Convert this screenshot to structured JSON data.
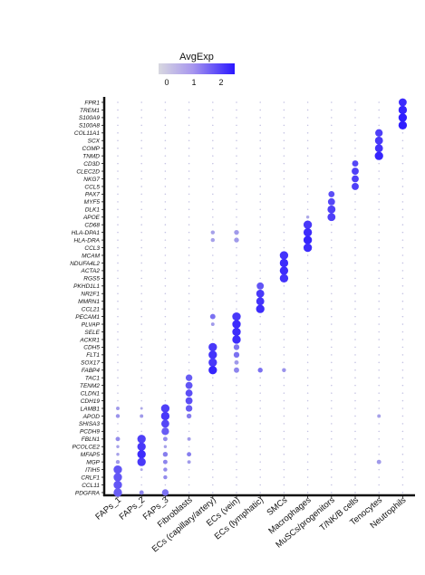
{
  "chart_data": {
    "type": "dotplot",
    "legend": {
      "title": "AvgExp",
      "ticks": [
        "0",
        "1",
        "2"
      ],
      "color_low": "#d8d8e0",
      "color_high": "#2a17ff",
      "range": [
        -0.3,
        2.5
      ]
    },
    "genes": [
      "FPR1",
      "TREM1",
      "S100A9",
      "S100A8",
      "COL11A1",
      "SCX",
      "COMP",
      "TNMD",
      "CD3D",
      "CLEC2D",
      "NKG7",
      "CCL5",
      "PAX7",
      "MYF5",
      "DLK1",
      "APOE",
      "CD68",
      "HLA-DPA1",
      "HLA-DRA",
      "CCL3",
      "MCAM",
      "NDUFA4L2",
      "ACTA2",
      "RGS5",
      "PKHD1L1",
      "NR2F1",
      "MMRN1",
      "CCL21",
      "PECAM1",
      "PLVAP",
      "SELE",
      "ACKR1",
      "CDH5",
      "FLT1",
      "SOX17",
      "FABP4",
      "TAC1",
      "TENM2",
      "CLDN1",
      "CDH19",
      "LAMB1",
      "APOD",
      "SHISA3",
      "PCDH9",
      "FBLN1",
      "PCOLCE2",
      "MFAP5",
      "MGP",
      "ITIH5",
      "CRLF1",
      "CCL11",
      "PDGFRA"
    ],
    "cell_types": [
      "FAPs_1",
      "FAPs_2",
      "FAPs_3",
      "Fibroblasts",
      "ECs (capillary/artery)",
      "ECs (vein)",
      "ECs (lymphatic)",
      "SMCs",
      "Macrophages",
      "MuSCs/progenitors",
      "T/NK/B cells",
      "Tenocytes",
      "Neutrophils"
    ],
    "highlights": [
      {
        "cell": "FAPs_1",
        "genes": {
          "FBLN1": [
            0.8,
            1.0
          ],
          "MGP": [
            0.6,
            0.9
          ],
          "ITIH5": [
            1.6,
            1.9
          ],
          "CRLF1": [
            1.6,
            1.9
          ],
          "CCL11": [
            1.6,
            1.9
          ],
          "PDGFRA": [
            1.5,
            1.9
          ],
          "LAMB1": [
            0.6,
            0.8
          ],
          "APOD": [
            0.7,
            0.9
          ],
          "PCOLCE2": [
            0.5,
            0.7
          ],
          "MFAP5": [
            0.5,
            0.7
          ]
        }
      },
      {
        "cell": "FAPs_2",
        "genes": {
          "FBLN1": [
            1.9,
            1.9
          ],
          "PCOLCE2": [
            2.0,
            1.9
          ],
          "MFAP5": [
            2.2,
            1.9
          ],
          "MGP": [
            2.0,
            1.9
          ],
          "APOD": [
            0.6,
            0.8
          ],
          "PDGFRA": [
            0.9,
            1.0
          ],
          "LAMB1": [
            0.4,
            0.6
          ],
          "ITIH5": [
            0.4,
            0.6
          ]
        }
      },
      {
        "cell": "FAPs_3",
        "genes": {
          "LAMB1": [
            1.9,
            1.9
          ],
          "APOD": [
            2.0,
            1.9
          ],
          "SHISA3": [
            1.8,
            1.8
          ],
          "PCDH9": [
            1.5,
            1.7
          ],
          "FBLN1": [
            0.8,
            1.0
          ],
          "MFAP5": [
            1.0,
            1.1
          ],
          "MGP": [
            0.9,
            1.0
          ],
          "ITIH5": [
            0.8,
            0.9
          ],
          "CRLF1": [
            0.8,
            0.9
          ],
          "PDGFRA": [
            1.2,
            1.5
          ],
          "PCOLCE2": [
            0.5,
            0.7
          ]
        }
      },
      {
        "cell": "Fibroblasts",
        "genes": {
          "TAC1": [
            1.5,
            1.5
          ],
          "TENM2": [
            1.6,
            1.6
          ],
          "CLDN1": [
            1.7,
            1.6
          ],
          "CDH19": [
            1.7,
            1.6
          ],
          "LAMB1": [
            1.5,
            1.5
          ],
          "APOD": [
            1.0,
            1.1
          ],
          "MFAP5": [
            1.0,
            1.0
          ],
          "FBLN1": [
            0.6,
            0.8
          ],
          "MGP": [
            0.6,
            0.8
          ]
        }
      },
      {
        "cell": "ECs (capillary/artery)",
        "genes": {
          "CDH5": [
            2.0,
            1.9
          ],
          "FLT1": [
            2.1,
            1.9
          ],
          "SOX17": [
            2.0,
            1.9
          ],
          "FABP4": [
            2.3,
            1.9
          ],
          "PECAM1": [
            1.2,
            1.2
          ],
          "HLA-DPA1": [
            0.5,
            0.9
          ],
          "HLA-DRA": [
            0.5,
            0.9
          ],
          "PLVAP": [
            0.6,
            0.8
          ]
        }
      },
      {
        "cell": "ECs (vein)",
        "genes": {
          "PLVAP": [
            2.2,
            1.9
          ],
          "SELE": [
            2.2,
            1.9
          ],
          "ACKR1": [
            2.2,
            1.9
          ],
          "PECAM1": [
            2.0,
            1.9
          ],
          "CDH5": [
            1.1,
            1.3
          ],
          "FLT1": [
            1.2,
            1.3
          ],
          "SOX17": [
            0.6,
            1.0
          ],
          "FABP4": [
            0.9,
            1.2
          ],
          "HLA-DPA1": [
            0.6,
            1.1
          ],
          "HLA-DRA": [
            0.6,
            1.1
          ]
        }
      },
      {
        "cell": "ECs (lymphatic)",
        "genes": {
          "NR2F1": [
            2.0,
            1.8
          ],
          "MMRN1": [
            2.1,
            1.8
          ],
          "CCL21": [
            2.2,
            1.9
          ],
          "PKHD1L1": [
            1.6,
            1.6
          ],
          "FABP4": [
            1.2,
            1.1
          ]
        }
      },
      {
        "cell": "SMCs",
        "genes": {
          "MCAM": [
            2.1,
            1.9
          ],
          "NDUFA4L2": [
            2.2,
            1.9
          ],
          "ACTA2": [
            2.2,
            1.9
          ],
          "RGS5": [
            2.1,
            1.9
          ],
          "FABP4": [
            0.7,
            0.9
          ]
        }
      },
      {
        "cell": "Macrophages",
        "genes": {
          "CD68": [
            2.0,
            1.9
          ],
          "HLA-DPA1": [
            2.2,
            1.9
          ],
          "HLA-DRA": [
            2.3,
            1.9
          ],
          "CCL3": [
            2.2,
            1.9
          ],
          "APOE": [
            0.4,
            0.7
          ]
        }
      },
      {
        "cell": "MuSCs/progenitors",
        "genes": {
          "PAX7": [
            1.7,
            1.4
          ],
          "MYF5": [
            1.8,
            1.6
          ],
          "DLK1": [
            1.9,
            1.8
          ],
          "APOE": [
            1.9,
            1.8
          ]
        }
      },
      {
        "cell": "T/NK/B cells",
        "genes": {
          "CD3D": [
            1.8,
            1.4
          ],
          "CLEC2D": [
            1.9,
            1.6
          ],
          "NKG7": [
            1.9,
            1.6
          ],
          "CCL5": [
            1.9,
            1.6
          ]
        }
      },
      {
        "cell": "Tenocytes",
        "genes": {
          "COL11A1": [
            1.9,
            1.7
          ],
          "SCX": [
            2.0,
            1.8
          ],
          "COMP": [
            2.1,
            1.8
          ],
          "TNMD": [
            2.3,
            1.9
          ],
          "APOD": [
            0.5,
            0.8
          ],
          "MGP": [
            0.6,
            1.0
          ]
        }
      },
      {
        "cell": "Neutrophils",
        "genes": {
          "FPR1": [
            2.2,
            1.8
          ],
          "TREM1": [
            2.3,
            1.9
          ],
          "S100A9": [
            2.4,
            1.9
          ],
          "S100A8": [
            2.4,
            1.9
          ]
        }
      }
    ],
    "value_encoding": {
      "color": "average expression",
      "size": "fraction of cells expressing"
    }
  }
}
